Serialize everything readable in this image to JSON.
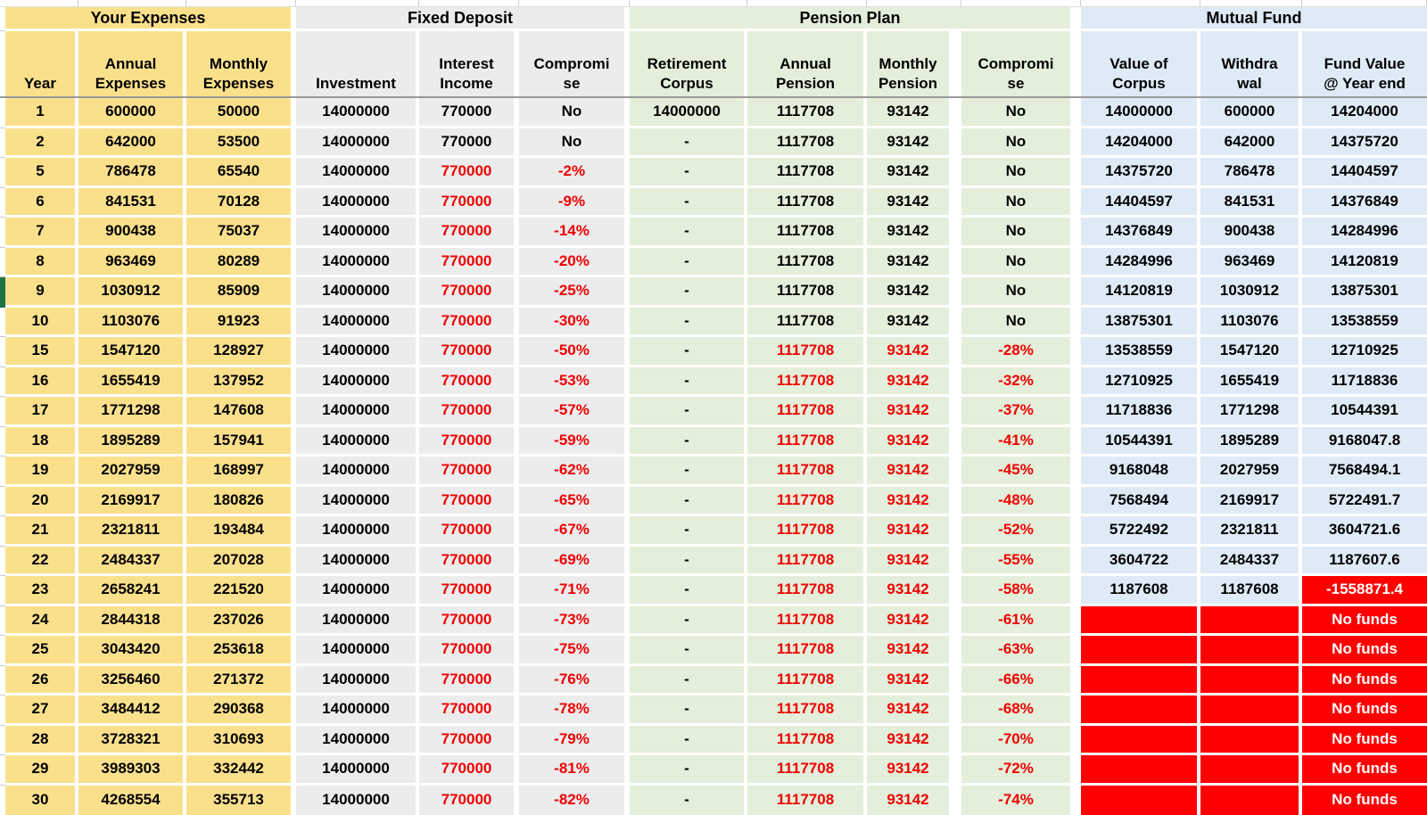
{
  "colors": {
    "expenses_fill": "#FBE08C",
    "fixed_deposit_fill": "#ECECEC",
    "pension_fill": "#E3EFDA",
    "mutual_fund_fill": "#DEEBF7",
    "alert_text": "#F00000",
    "alert_fill": "#FE0000",
    "row_marker_green": "#217346"
  },
  "table": {
    "groups": [
      {
        "label": "Your Expenses",
        "span": 3
      },
      {
        "label": "Fixed Deposit",
        "span": 3
      },
      {
        "label": "Pension Plan",
        "span": 4
      },
      {
        "label": "Mutual Fund",
        "span": 3
      }
    ],
    "headers": [
      {
        "key": "year",
        "lines": [
          "Year"
        ]
      },
      {
        "key": "annual-expenses",
        "lines": [
          "Annual",
          "Expenses"
        ]
      },
      {
        "key": "monthly-expenses",
        "lines": [
          "Monthly",
          "Expenses"
        ]
      },
      {
        "key": "investment",
        "lines": [
          "Investment"
        ]
      },
      {
        "key": "interest-income",
        "lines": [
          "Interest",
          "Income"
        ]
      },
      {
        "key": "fd-compromise",
        "lines": [
          "Compromi",
          "se"
        ]
      },
      {
        "key": "retirement-corpus",
        "lines": [
          "Retirement",
          "Corpus"
        ]
      },
      {
        "key": "annual-pension",
        "lines": [
          "Annual",
          "Pension"
        ]
      },
      {
        "key": "monthly-pension",
        "lines": [
          "Monthly",
          "Pension"
        ]
      },
      {
        "key": "pension-compromise",
        "lines": [
          "Compromi",
          "se"
        ]
      },
      {
        "key": "value-of-corpus",
        "lines": [
          "Value of",
          "Corpus"
        ]
      },
      {
        "key": "withdrawal",
        "lines": [
          "Withdra",
          "wal"
        ]
      },
      {
        "key": "fund-value",
        "lines": [
          "Fund Value",
          "@ Year end"
        ]
      }
    ],
    "selected_row_year": "9",
    "rows": [
      {
        "values": [
          "1",
          "600000",
          "50000",
          "14000000",
          "770000",
          "No",
          "14000000",
          "1117708",
          "93142",
          "No",
          "14000000",
          "600000",
          "14204000"
        ],
        "red": [],
        "fill": []
      },
      {
        "values": [
          "2",
          "642000",
          "53500",
          "14000000",
          "770000",
          "No",
          "-",
          "1117708",
          "93142",
          "No",
          "14204000",
          "642000",
          "14375720"
        ],
        "red": [],
        "fill": []
      },
      {
        "values": [
          "5",
          "786478",
          "65540",
          "14000000",
          "770000",
          "-2%",
          "-",
          "1117708",
          "93142",
          "No",
          "14375720",
          "786478",
          "14404597"
        ],
        "red": [
          4,
          5
        ],
        "fill": []
      },
      {
        "values": [
          "6",
          "841531",
          "70128",
          "14000000",
          "770000",
          "-9%",
          "-",
          "1117708",
          "93142",
          "No",
          "14404597",
          "841531",
          "14376849"
        ],
        "red": [
          4,
          5
        ],
        "fill": []
      },
      {
        "values": [
          "7",
          "900438",
          "75037",
          "14000000",
          "770000",
          "-14%",
          "-",
          "1117708",
          "93142",
          "No",
          "14376849",
          "900438",
          "14284996"
        ],
        "red": [
          4,
          5
        ],
        "fill": []
      },
      {
        "values": [
          "8",
          "963469",
          "80289",
          "14000000",
          "770000",
          "-20%",
          "-",
          "1117708",
          "93142",
          "No",
          "14284996",
          "963469",
          "14120819"
        ],
        "red": [
          4,
          5
        ],
        "fill": []
      },
      {
        "values": [
          "9",
          "1030912",
          "85909",
          "14000000",
          "770000",
          "-25%",
          "-",
          "1117708",
          "93142",
          "No",
          "14120819",
          "1030912",
          "13875301"
        ],
        "red": [
          4,
          5
        ],
        "fill": []
      },
      {
        "values": [
          "10",
          "1103076",
          "91923",
          "14000000",
          "770000",
          "-30%",
          "-",
          "1117708",
          "93142",
          "No",
          "13875301",
          "1103076",
          "13538559"
        ],
        "red": [
          4,
          5
        ],
        "fill": []
      },
      {
        "values": [
          "15",
          "1547120",
          "128927",
          "14000000",
          "770000",
          "-50%",
          "-",
          "1117708",
          "93142",
          "-28%",
          "13538559",
          "1547120",
          "12710925"
        ],
        "red": [
          4,
          5,
          7,
          8,
          9
        ],
        "fill": []
      },
      {
        "values": [
          "16",
          "1655419",
          "137952",
          "14000000",
          "770000",
          "-53%",
          "-",
          "1117708",
          "93142",
          "-32%",
          "12710925",
          "1655419",
          "11718836"
        ],
        "red": [
          4,
          5,
          7,
          8,
          9
        ],
        "fill": []
      },
      {
        "values": [
          "17",
          "1771298",
          "147608",
          "14000000",
          "770000",
          "-57%",
          "-",
          "1117708",
          "93142",
          "-37%",
          "11718836",
          "1771298",
          "10544391"
        ],
        "red": [
          4,
          5,
          7,
          8,
          9
        ],
        "fill": []
      },
      {
        "values": [
          "18",
          "1895289",
          "157941",
          "14000000",
          "770000",
          "-59%",
          "-",
          "1117708",
          "93142",
          "-41%",
          "10544391",
          "1895289",
          "9168047.8"
        ],
        "red": [
          4,
          5,
          7,
          8,
          9
        ],
        "fill": []
      },
      {
        "values": [
          "19",
          "2027959",
          "168997",
          "14000000",
          "770000",
          "-62%",
          "-",
          "1117708",
          "93142",
          "-45%",
          "9168048",
          "2027959",
          "7568494.1"
        ],
        "red": [
          4,
          5,
          7,
          8,
          9
        ],
        "fill": []
      },
      {
        "values": [
          "20",
          "2169917",
          "180826",
          "14000000",
          "770000",
          "-65%",
          "-",
          "1117708",
          "93142",
          "-48%",
          "7568494",
          "2169917",
          "5722491.7"
        ],
        "red": [
          4,
          5,
          7,
          8,
          9
        ],
        "fill": []
      },
      {
        "values": [
          "21",
          "2321811",
          "193484",
          "14000000",
          "770000",
          "-67%",
          "-",
          "1117708",
          "93142",
          "-52%",
          "5722492",
          "2321811",
          "3604721.6"
        ],
        "red": [
          4,
          5,
          7,
          8,
          9
        ],
        "fill": []
      },
      {
        "values": [
          "22",
          "2484337",
          "207028",
          "14000000",
          "770000",
          "-69%",
          "-",
          "1117708",
          "93142",
          "-55%",
          "3604722",
          "2484337",
          "1187607.6"
        ],
        "red": [
          4,
          5,
          7,
          8,
          9
        ],
        "fill": []
      },
      {
        "values": [
          "23",
          "2658241",
          "221520",
          "14000000",
          "770000",
          "-71%",
          "-",
          "1117708",
          "93142",
          "-58%",
          "1187608",
          "1187608",
          "-1558871.4"
        ],
        "red": [
          4,
          5,
          7,
          8,
          9
        ],
        "fill": [
          12
        ]
      },
      {
        "values": [
          "24",
          "2844318",
          "237026",
          "14000000",
          "770000",
          "-73%",
          "-",
          "1117708",
          "93142",
          "-61%",
          "",
          "",
          "No funds"
        ],
        "red": [
          4,
          5,
          7,
          8,
          9
        ],
        "fill": [
          10,
          11,
          12
        ]
      },
      {
        "values": [
          "25",
          "3043420",
          "253618",
          "14000000",
          "770000",
          "-75%",
          "-",
          "1117708",
          "93142",
          "-63%",
          "",
          "",
          "No funds"
        ],
        "red": [
          4,
          5,
          7,
          8,
          9
        ],
        "fill": [
          10,
          11,
          12
        ]
      },
      {
        "values": [
          "26",
          "3256460",
          "271372",
          "14000000",
          "770000",
          "-76%",
          "-",
          "1117708",
          "93142",
          "-66%",
          "",
          "",
          "No funds"
        ],
        "red": [
          4,
          5,
          7,
          8,
          9
        ],
        "fill": [
          10,
          11,
          12
        ]
      },
      {
        "values": [
          "27",
          "3484412",
          "290368",
          "14000000",
          "770000",
          "-78%",
          "-",
          "1117708",
          "93142",
          "-68%",
          "",
          "",
          "No funds"
        ],
        "red": [
          4,
          5,
          7,
          8,
          9
        ],
        "fill": [
          10,
          11,
          12
        ]
      },
      {
        "values": [
          "28",
          "3728321",
          "310693",
          "14000000",
          "770000",
          "-79%",
          "-",
          "1117708",
          "93142",
          "-70%",
          "",
          "",
          "No funds"
        ],
        "red": [
          4,
          5,
          7,
          8,
          9
        ],
        "fill": [
          10,
          11,
          12
        ]
      },
      {
        "values": [
          "29",
          "3989303",
          "332442",
          "14000000",
          "770000",
          "-81%",
          "-",
          "1117708",
          "93142",
          "-72%",
          "",
          "",
          "No funds"
        ],
        "red": [
          4,
          5,
          7,
          8,
          9
        ],
        "fill": [
          10,
          11,
          12
        ]
      },
      {
        "values": [
          "30",
          "4268554",
          "355713",
          "14000000",
          "770000",
          "-82%",
          "-",
          "1117708",
          "93142",
          "-74%",
          "",
          "",
          "No funds"
        ],
        "red": [
          4,
          5,
          7,
          8,
          9
        ],
        "fill": [
          10,
          11,
          12
        ]
      }
    ]
  }
}
